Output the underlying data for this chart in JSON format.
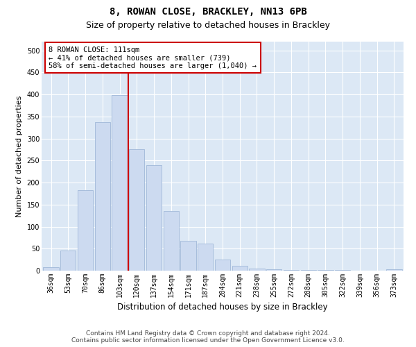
{
  "title": "8, ROWAN CLOSE, BRACKLEY, NN13 6PB",
  "subtitle": "Size of property relative to detached houses in Brackley",
  "xlabel": "Distribution of detached houses by size in Brackley",
  "ylabel": "Number of detached properties",
  "categories": [
    "36sqm",
    "53sqm",
    "70sqm",
    "86sqm",
    "103sqm",
    "120sqm",
    "137sqm",
    "154sqm",
    "171sqm",
    "187sqm",
    "204sqm",
    "221sqm",
    "238sqm",
    "255sqm",
    "272sqm",
    "288sqm",
    "305sqm",
    "322sqm",
    "339sqm",
    "356sqm",
    "373sqm"
  ],
  "values": [
    8,
    46,
    183,
    337,
    398,
    275,
    240,
    136,
    68,
    62,
    25,
    11,
    5,
    3,
    2,
    1,
    1,
    1,
    0,
    0,
    3
  ],
  "bar_color": "#ccdaf0",
  "bar_edge_color": "#a0b8d8",
  "vline_x": 4.5,
  "vline_color": "#cc0000",
  "annotation_text": "8 ROWAN CLOSE: 111sqm\n← 41% of detached houses are smaller (739)\n58% of semi-detached houses are larger (1,040) →",
  "annotation_box_color": "#ffffff",
  "annotation_box_edge_color": "#cc0000",
  "ylim": [
    0,
    520
  ],
  "yticks": [
    0,
    50,
    100,
    150,
    200,
    250,
    300,
    350,
    400,
    450,
    500
  ],
  "background_color": "#dce8f5",
  "footer_line1": "Contains HM Land Registry data © Crown copyright and database right 2024.",
  "footer_line2": "Contains public sector information licensed under the Open Government Licence v3.0.",
  "title_fontsize": 10,
  "subtitle_fontsize": 9,
  "xlabel_fontsize": 8.5,
  "ylabel_fontsize": 8,
  "tick_fontsize": 7,
  "annotation_fontsize": 7.5
}
